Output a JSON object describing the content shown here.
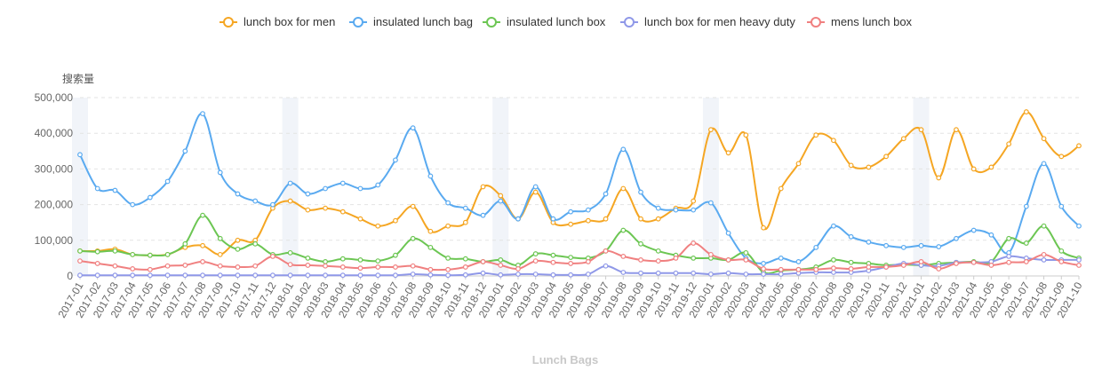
{
  "chart_data": {
    "type": "line",
    "title": "Lunch Bags",
    "ylabel": "搜索量",
    "xlabel": "",
    "ylim": [
      0,
      500000
    ],
    "yticks": [
      0,
      100000,
      200000,
      300000,
      400000,
      500000
    ],
    "ytick_labels": [
      "0",
      "100,000",
      "200,000",
      "300,000",
      "400,000",
      "500,000"
    ],
    "grid": "horizontal dashed",
    "legend_position": "top-center",
    "categories": [
      "2017-01",
      "2017-02",
      "2017-03",
      "2017-04",
      "2017-05",
      "2017-06",
      "2017-07",
      "2017-08",
      "2017-09",
      "2017-10",
      "2017-11",
      "2017-12",
      "2018-01",
      "2018-02",
      "2018-03",
      "2018-04",
      "2018-05",
      "2018-06",
      "2018-07",
      "2018-08",
      "2018-09",
      "2018-10",
      "2018-11",
      "2018-12",
      "2019-01",
      "2019-02",
      "2019-03",
      "2019-04",
      "2019-05",
      "2019-06",
      "2019-07",
      "2019-08",
      "2019-09",
      "2019-10",
      "2019-11",
      "2019-12",
      "2020-01",
      "2020-02",
      "2020-03",
      "2020-04",
      "2020-05",
      "2020-06",
      "2020-07",
      "2020-08",
      "2020-09",
      "2020-10",
      "2020-11",
      "2020-12",
      "2021-01",
      "2021-02",
      "2021-03",
      "2021-04",
      "2021-05",
      "2021-06",
      "2021-07",
      "2021-08",
      "2021-09",
      "2021-10"
    ],
    "highlighted_periods": [
      "2017-01",
      "2018-01",
      "2019-01",
      "2020-01",
      "2021-01"
    ],
    "series": [
      {
        "name": "lunch box for men",
        "color": "#f5a623",
        "values": [
          70000,
          70000,
          75000,
          60000,
          58000,
          60000,
          80000,
          85000,
          60000,
          100000,
          100000,
          190000,
          210000,
          185000,
          190000,
          180000,
          160000,
          140000,
          155000,
          195000,
          125000,
          140000,
          150000,
          250000,
          225000,
          160000,
          235000,
          150000,
          145000,
          155000,
          160000,
          245000,
          160000,
          160000,
          190000,
          210000,
          410000,
          345000,
          395000,
          135000,
          245000,
          315000,
          395000,
          380000,
          310000,
          305000,
          335000,
          385000,
          410000,
          275000,
          410000,
          300000,
          305000,
          370000,
          460000,
          385000,
          335000,
          365000
        ]
      },
      {
        "name": "insulated lunch bag",
        "color": "#5aaaf0",
        "values": [
          340000,
          245000,
          240000,
          200000,
          220000,
          265000,
          350000,
          455000,
          290000,
          230000,
          210000,
          200000,
          260000,
          230000,
          245000,
          260000,
          245000,
          255000,
          325000,
          415000,
          280000,
          205000,
          190000,
          170000,
          210000,
          160000,
          250000,
          160000,
          180000,
          185000,
          230000,
          355000,
          235000,
          190000,
          185000,
          185000,
          205000,
          120000,
          50000,
          35000,
          50000,
          40000,
          80000,
          140000,
          110000,
          95000,
          85000,
          80000,
          85000,
          82000,
          105000,
          128000,
          115000,
          65000,
          195000,
          315000,
          195000,
          140000
        ]
      },
      {
        "name": "insulated lunch box",
        "color": "#6cc653",
        "values": [
          70000,
          68000,
          70000,
          60000,
          58000,
          60000,
          90000,
          170000,
          105000,
          75000,
          90000,
          60000,
          65000,
          50000,
          40000,
          48000,
          45000,
          42000,
          58000,
          105000,
          80000,
          50000,
          48000,
          40000,
          45000,
          30000,
          62000,
          58000,
          52000,
          50000,
          70000,
          128000,
          90000,
          70000,
          58000,
          50000,
          50000,
          45000,
          65000,
          10000,
          15000,
          18000,
          25000,
          45000,
          38000,
          35000,
          30000,
          32000,
          30000,
          35000,
          38000,
          40000,
          40000,
          105000,
          92000,
          140000,
          70000,
          50000
        ]
      },
      {
        "name": "lunch box for men heavy duty",
        "color": "#8f98e8",
        "values": [
          2000,
          2000,
          2000,
          2000,
          2000,
          2000,
          2000,
          2000,
          2000,
          2000,
          2000,
          2000,
          2000,
          2000,
          2000,
          2000,
          2000,
          2000,
          2000,
          5000,
          3000,
          2000,
          3000,
          8000,
          3000,
          5000,
          5000,
          3000,
          3000,
          5000,
          28000,
          10000,
          8000,
          8000,
          8000,
          8000,
          5000,
          8000,
          5000,
          5000,
          5000,
          8000,
          10000,
          10000,
          10000,
          15000,
          25000,
          35000,
          30000,
          28000,
          38000,
          38000,
          40000,
          55000,
          50000,
          45000,
          45000,
          45000
        ]
      },
      {
        "name": "mens lunch box",
        "color": "#f08080",
        "values": [
          42000,
          35000,
          28000,
          20000,
          18000,
          28000,
          30000,
          40000,
          28000,
          25000,
          28000,
          55000,
          32000,
          30000,
          28000,
          25000,
          22000,
          25000,
          25000,
          28000,
          18000,
          18000,
          25000,
          40000,
          30000,
          20000,
          42000,
          38000,
          35000,
          40000,
          70000,
          55000,
          45000,
          42000,
          50000,
          92000,
          60000,
          45000,
          45000,
          20000,
          18000,
          18000,
          18000,
          22000,
          20000,
          25000,
          25000,
          30000,
          40000,
          20000,
          35000,
          38000,
          30000,
          38000,
          40000,
          60000,
          40000,
          30000
        ]
      }
    ]
  }
}
